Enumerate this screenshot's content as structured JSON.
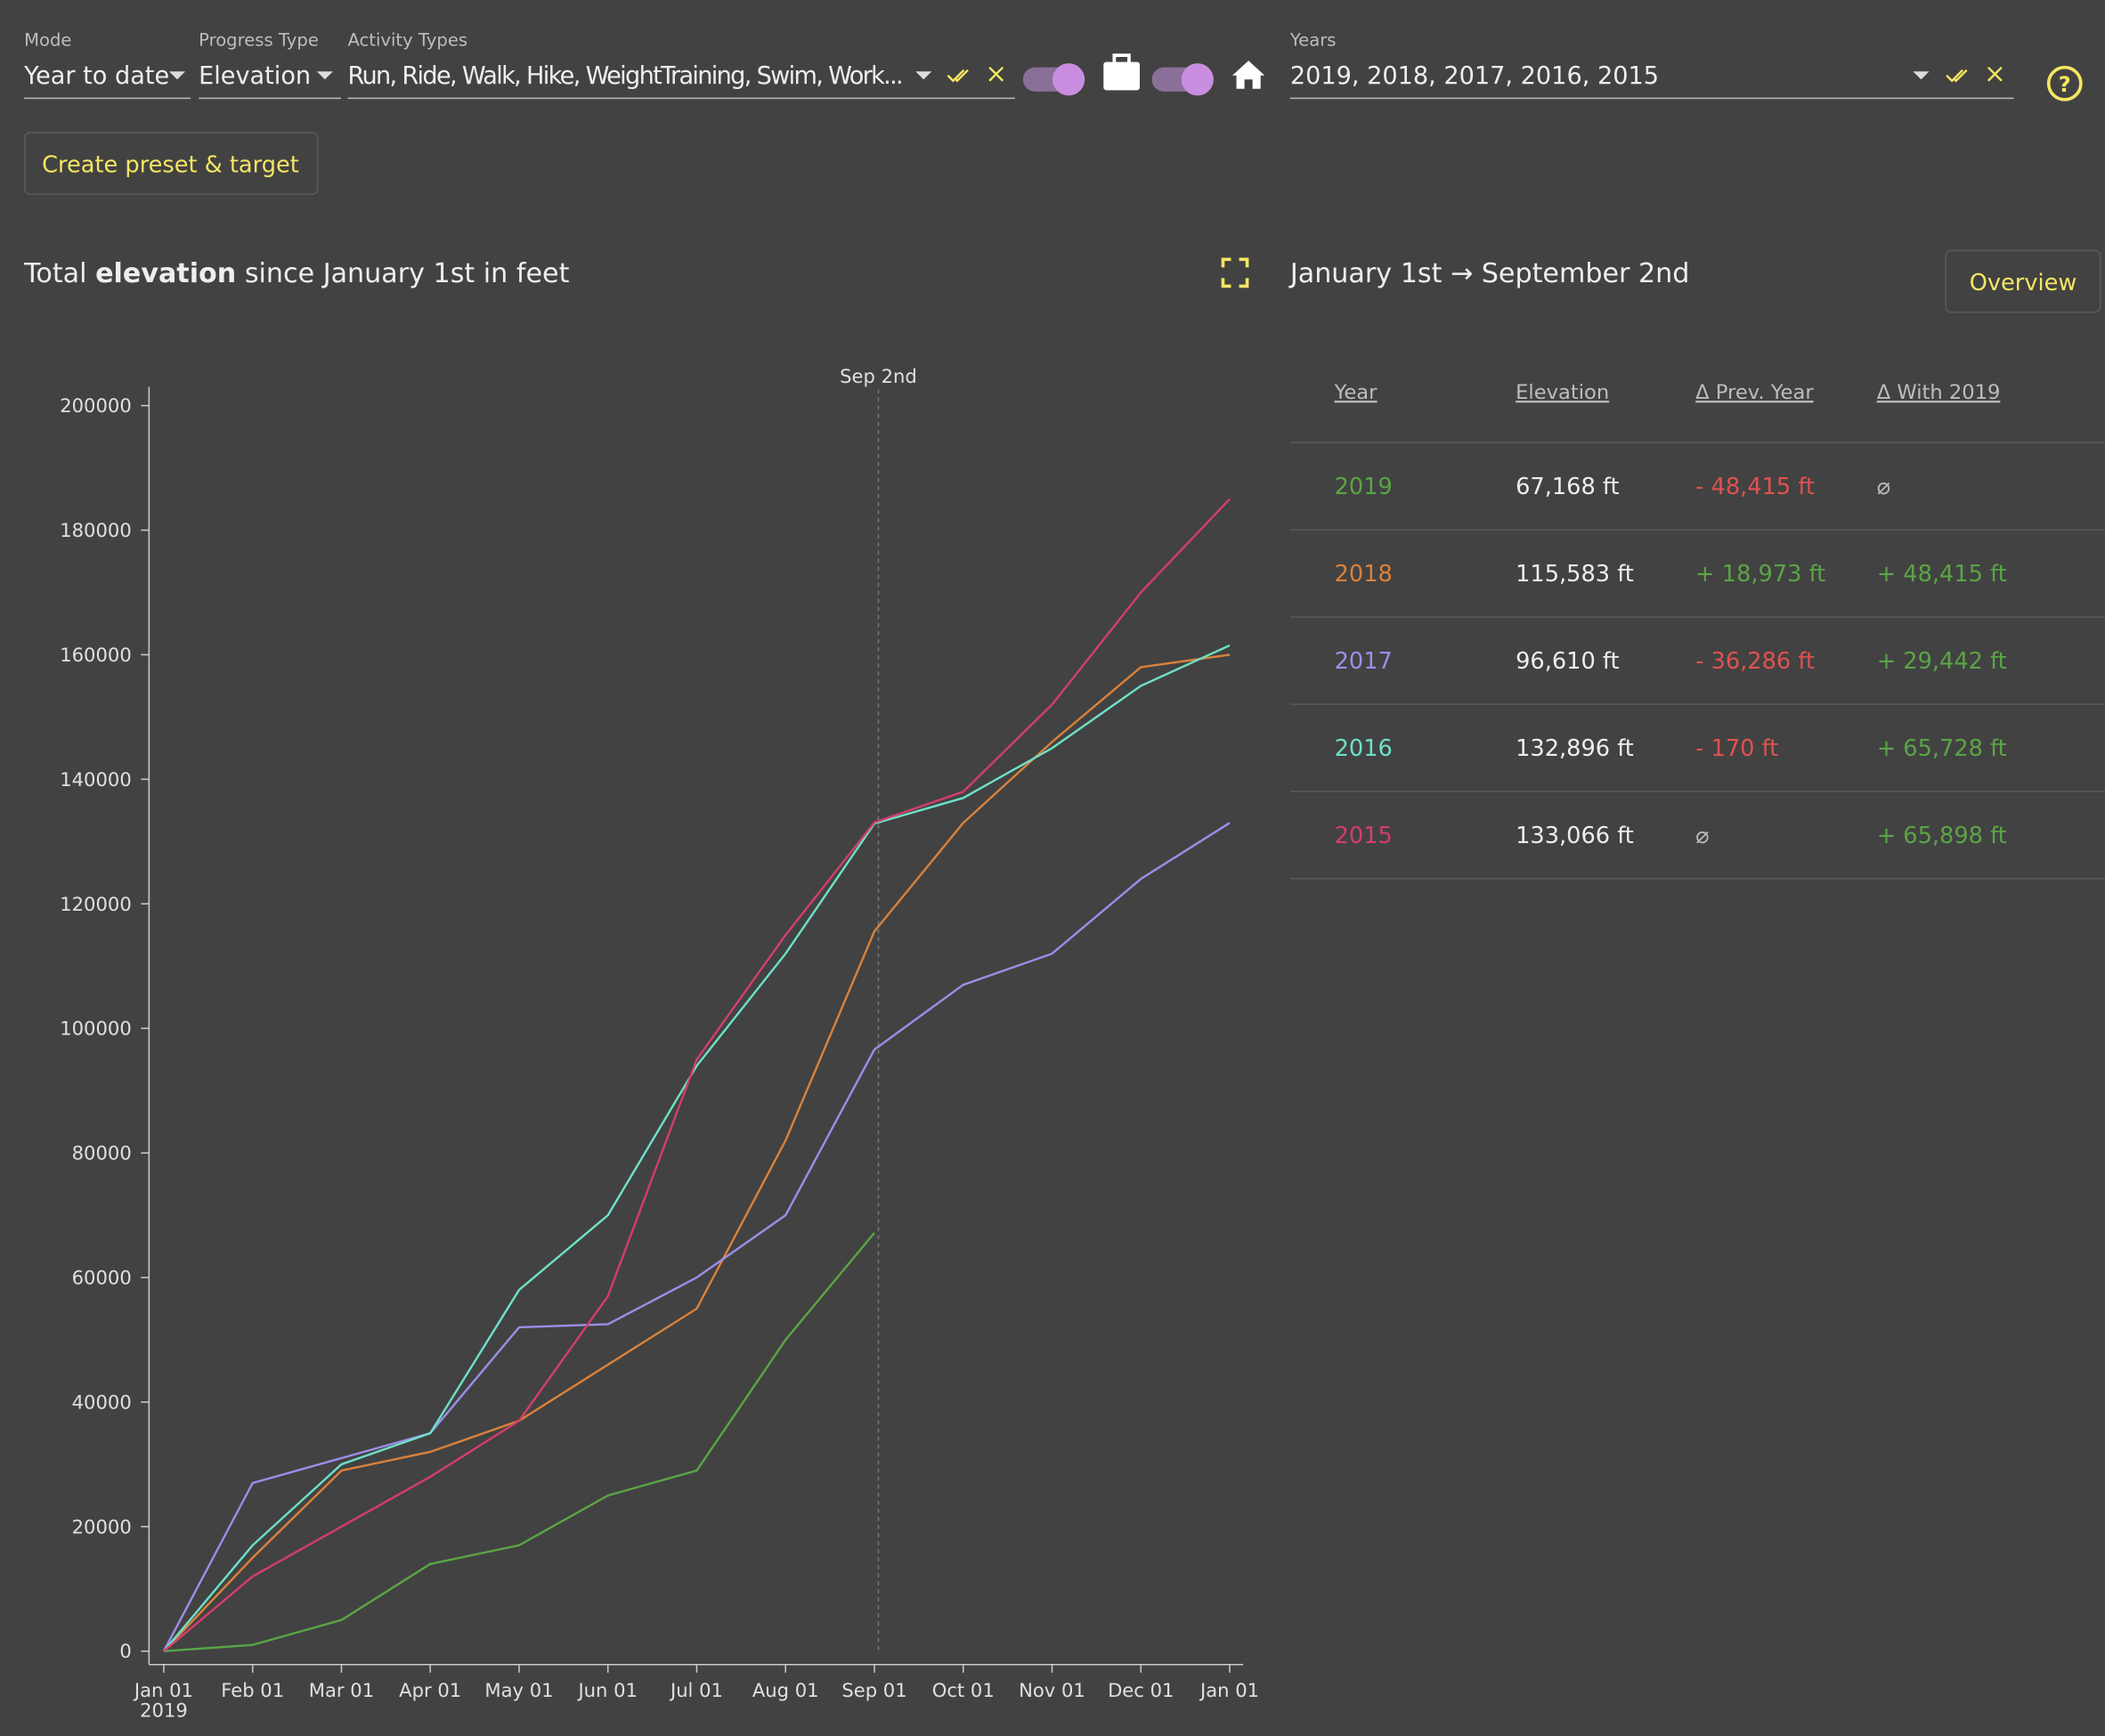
{
  "controls": {
    "mode": {
      "label": "Mode",
      "value": "Year to date"
    },
    "progress_type": {
      "label": "Progress Type",
      "value": "Elevation"
    },
    "activity_types": {
      "label": "Activity Types",
      "value": "Run, Ride, Walk, Hike, WeightTraining, Swim, Work..."
    },
    "years": {
      "label": "Years",
      "value": "2019, 2018, 2017, 2016, 2015"
    },
    "create_button": "Create preset & target"
  },
  "chart_data": {
    "type": "line",
    "title_parts": [
      "Total",
      "elevation",
      "since January 1st in feet"
    ],
    "x": [
      "Jan 01",
      "Feb 01",
      "Mar 01",
      "Apr 01",
      "May 01",
      "Jun 01",
      "Jul 01",
      "Aug 01",
      "Sep 01",
      "Oct 01",
      "Nov 01",
      "Dec 01",
      "Jan 01"
    ],
    "x_sublabel": "2019",
    "marker_label": "Sep 2nd",
    "series": [
      {
        "color": "#5aa545",
        "values": [
          0,
          1000,
          5000,
          14000,
          17000,
          25000,
          29000,
          50000,
          67168,
          null,
          null,
          null,
          null
        ]
      },
      {
        "color": "#d9823b",
        "values": [
          0,
          15000,
          29000,
          32000,
          37000,
          46000,
          55000,
          82000,
          115583,
          133000,
          146000,
          158000,
          160000
        ]
      },
      {
        "color": "#9b8ee8",
        "values": [
          0,
          27000,
          31000,
          35000,
          52000,
          52500,
          60000,
          70000,
          96610,
          107000,
          112000,
          124000,
          133000
        ]
      },
      {
        "color": "#6de0c8",
        "values": [
          0,
          17000,
          30000,
          35000,
          58000,
          70000,
          94000,
          112000,
          132896,
          137000,
          145000,
          155000,
          161500
        ]
      },
      {
        "color": "#d43d6e",
        "values": [
          0,
          12000,
          20000,
          28000,
          37000,
          57000,
          95000,
          115000,
          133066,
          138000,
          152000,
          170000,
          185000
        ]
      }
    ],
    "ylim": [
      0,
      200000
    ],
    "yticks": [
      0,
      20000,
      40000,
      60000,
      80000,
      100000,
      120000,
      140000,
      160000,
      180000,
      200000
    ]
  },
  "summary": {
    "range": "January 1st → September 2nd",
    "button": "Overview",
    "table": {
      "header": [
        "Year",
        "Elevation",
        "Δ Prev. Year",
        "Δ With 2019"
      ],
      "rows": [
        [
          "2019",
          "67,168 ft",
          "- 48,415 ft",
          "⌀"
        ],
        [
          "2018",
          "115,583 ft",
          "+ 18,973 ft",
          "+ 48,415 ft"
        ],
        [
          "2017",
          "96,610 ft",
          "- 36,286 ft",
          "+ 29,442 ft"
        ],
        [
          "2016",
          "132,896 ft",
          "- 170 ft",
          "+ 65,728 ft"
        ],
        [
          "2015",
          "133,066 ft",
          "⌀",
          "+ 65,898 ft"
        ]
      ]
    }
  }
}
